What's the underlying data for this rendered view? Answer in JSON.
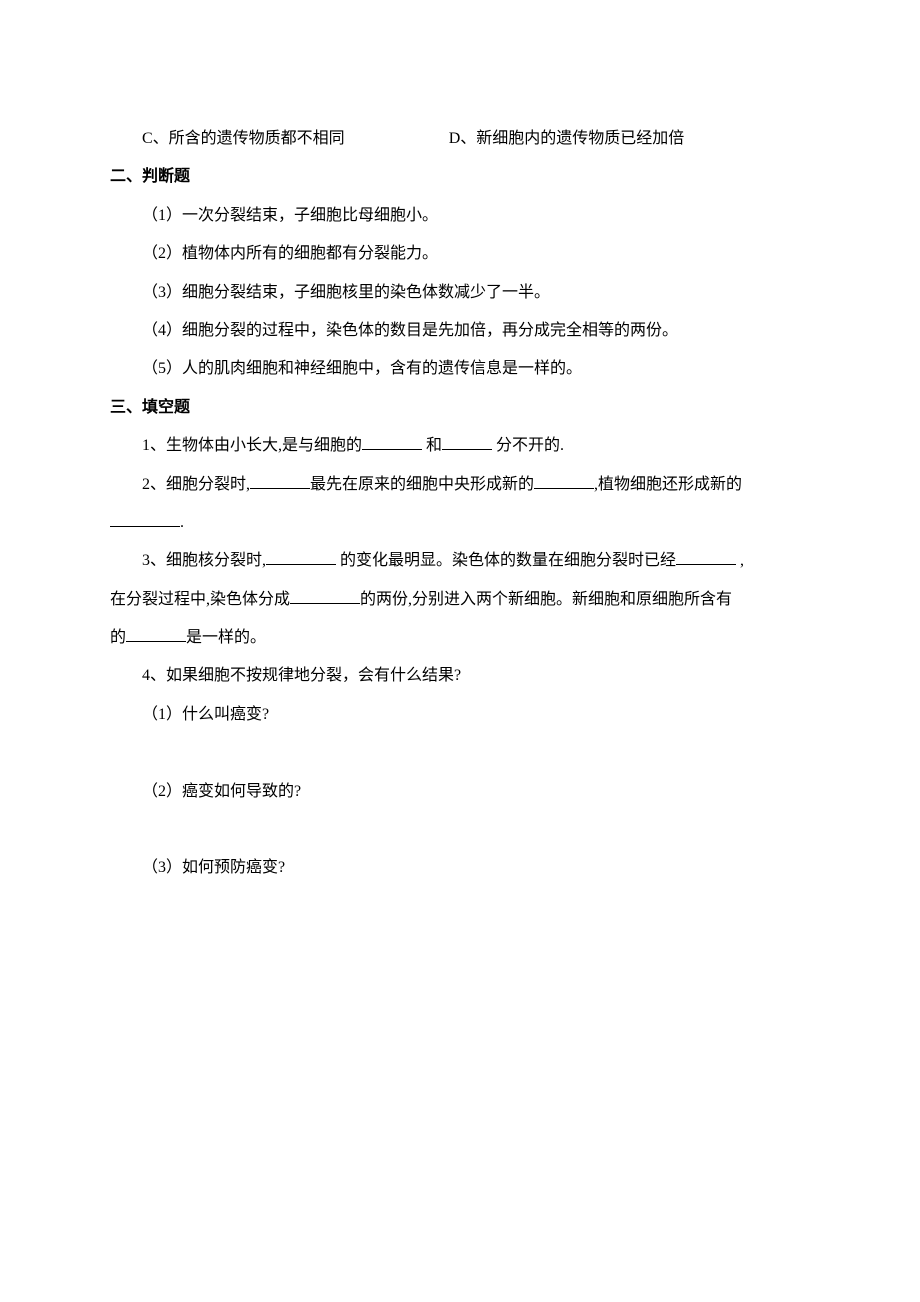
{
  "options": {
    "c": "C、所含的遗传物质都不相同",
    "d": "D、新细胞内的遗传物质已经加倍"
  },
  "section2": {
    "title": "二、判断题",
    "items": [
      "（1）一次分裂结束，子细胞比母细胞小。",
      "（2）植物体内所有的细胞都有分裂能力。",
      "（3）细胞分裂结束，子细胞核里的染色体数减少了一半。",
      "（4）细胞分裂的过程中，染色体的数目是先加倍，再分成完全相等的两份。",
      "（5）人的肌肉细胞和神经细胞中，含有的遗传信息是一样的。"
    ]
  },
  "section3": {
    "title": "三、填空题",
    "q1_pre": "1、生物体由小长大,是与细胞的",
    "q1_mid": " 和",
    "q1_end": " 分不开的.",
    "q2_pre": "2、细胞分裂时,",
    "q2_mid": "最先在原来的细胞中央形成新的",
    "q2_end": ",植物细胞还形成新的",
    "q2_tail": ".",
    "q3_pre": "3、细胞核分裂时,",
    "q3_mid1": " 的变化最明显。染色体的数量在细胞分裂时已经",
    "q3_mid2": " ,",
    "q3_line2_pre": "在分裂过程中,染色体分成",
    "q3_line2_mid": "的两份,分别进入两个新细胞。新细胞和原细胞所含有",
    "q3_line3_pre": "的",
    "q3_line3_end": "是一样的。",
    "q4": "4、如果细胞不按规律地分裂，会有什么结果?",
    "q4_sub1": "（1）什么叫癌变?",
    "q4_sub2": "（2）癌变如何导致的?",
    "q4_sub3": "（3）如何预防癌变?"
  },
  "blank_widths": {
    "short": "50px",
    "med": "60px",
    "long": "70px"
  }
}
